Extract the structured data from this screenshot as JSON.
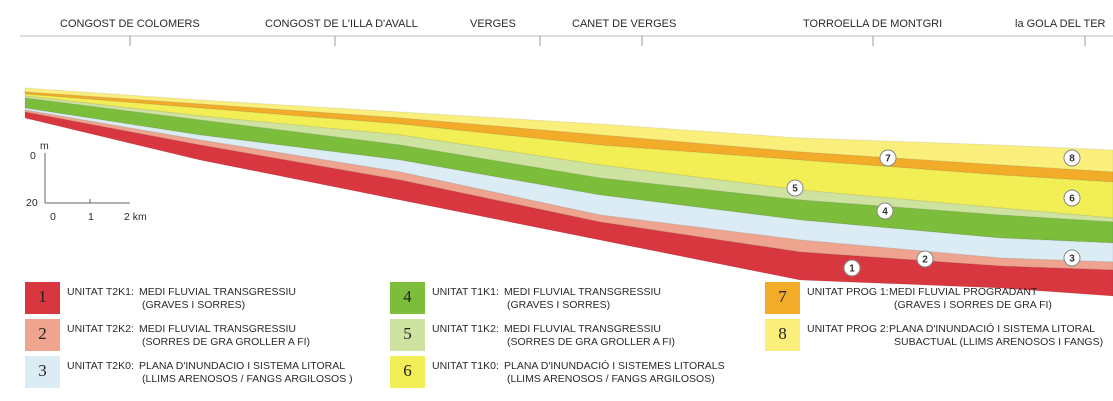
{
  "locations": [
    "CONGOST DE COLOMERS",
    "CONGOST DE L'ILLA D'AVALL",
    "VERGES",
    "CANET DE VERGES",
    "TORROELLA DE MONTGRI",
    "la GOLA DEL TER"
  ],
  "scale": {
    "depth_unit": "m",
    "depth_ticks": [
      "0",
      "20"
    ],
    "distance_ticks": [
      "0",
      "1",
      "2 km"
    ]
  },
  "units": [
    {
      "number": "1",
      "code": "UNITAT T2K1:",
      "description": [
        "MEDI FLUVIAL TRANSGRESSIU",
        "(GRAVES I SORRES)"
      ],
      "color": "#d8373f"
    },
    {
      "number": "2",
      "code": "UNITAT T2K2:",
      "description": [
        "MEDI FLUVIAL TRANSGRESSIU",
        "(SORRES DE GRA GROLLER  A FI)"
      ],
      "color": "#eea48e"
    },
    {
      "number": "3",
      "code": "UNITAT T2K0:",
      "description": [
        "PLANA D'INUNDACIO I SISTEMA LITORAL",
        "(LLIMS ARENOSOS / FANGS ARGILOSOS )"
      ],
      "color": "#dcecf5"
    },
    {
      "number": "4",
      "code": "UNITAT T1K1:",
      "description": [
        "MEDI FLUVIAL TRANSGRESSIU",
        "(GRAVES I SORRES)"
      ],
      "color": "#7cbd3c"
    },
    {
      "number": "5",
      "code": "UNITAT T1K2:",
      "description": [
        "MEDI FLUVIAL TRANSGRESSIU",
        "(SORRES DE GRA GROLLER  A FI)"
      ],
      "color": "#cfe3a0"
    },
    {
      "number": "6",
      "code": "UNITAT T1K0:",
      "description": [
        "PLANA D'INUNDACIÓ I SISTEMES LITORALS",
        "(LLIMS ARENOSOS / FANGS ARGILOSOS)"
      ],
      "color": "#f2ee55"
    },
    {
      "number": "7",
      "code": "UNITAT PROG 1:",
      "description": [
        "MEDI FLUVIAL PROGRADANT",
        "(GRAVES I SORRES DE GRA FI)"
      ],
      "color": "#f2ac2a"
    },
    {
      "number": "8",
      "code": "UNITAT PROG 2:",
      "description": [
        "PLANA D'INUNDACIÓ I SISTEMA LITORAL",
        "SUBACTUAL (LLIMS ARENOSOS I FANGS)"
      ],
      "color": "#fbef7c"
    }
  ]
}
